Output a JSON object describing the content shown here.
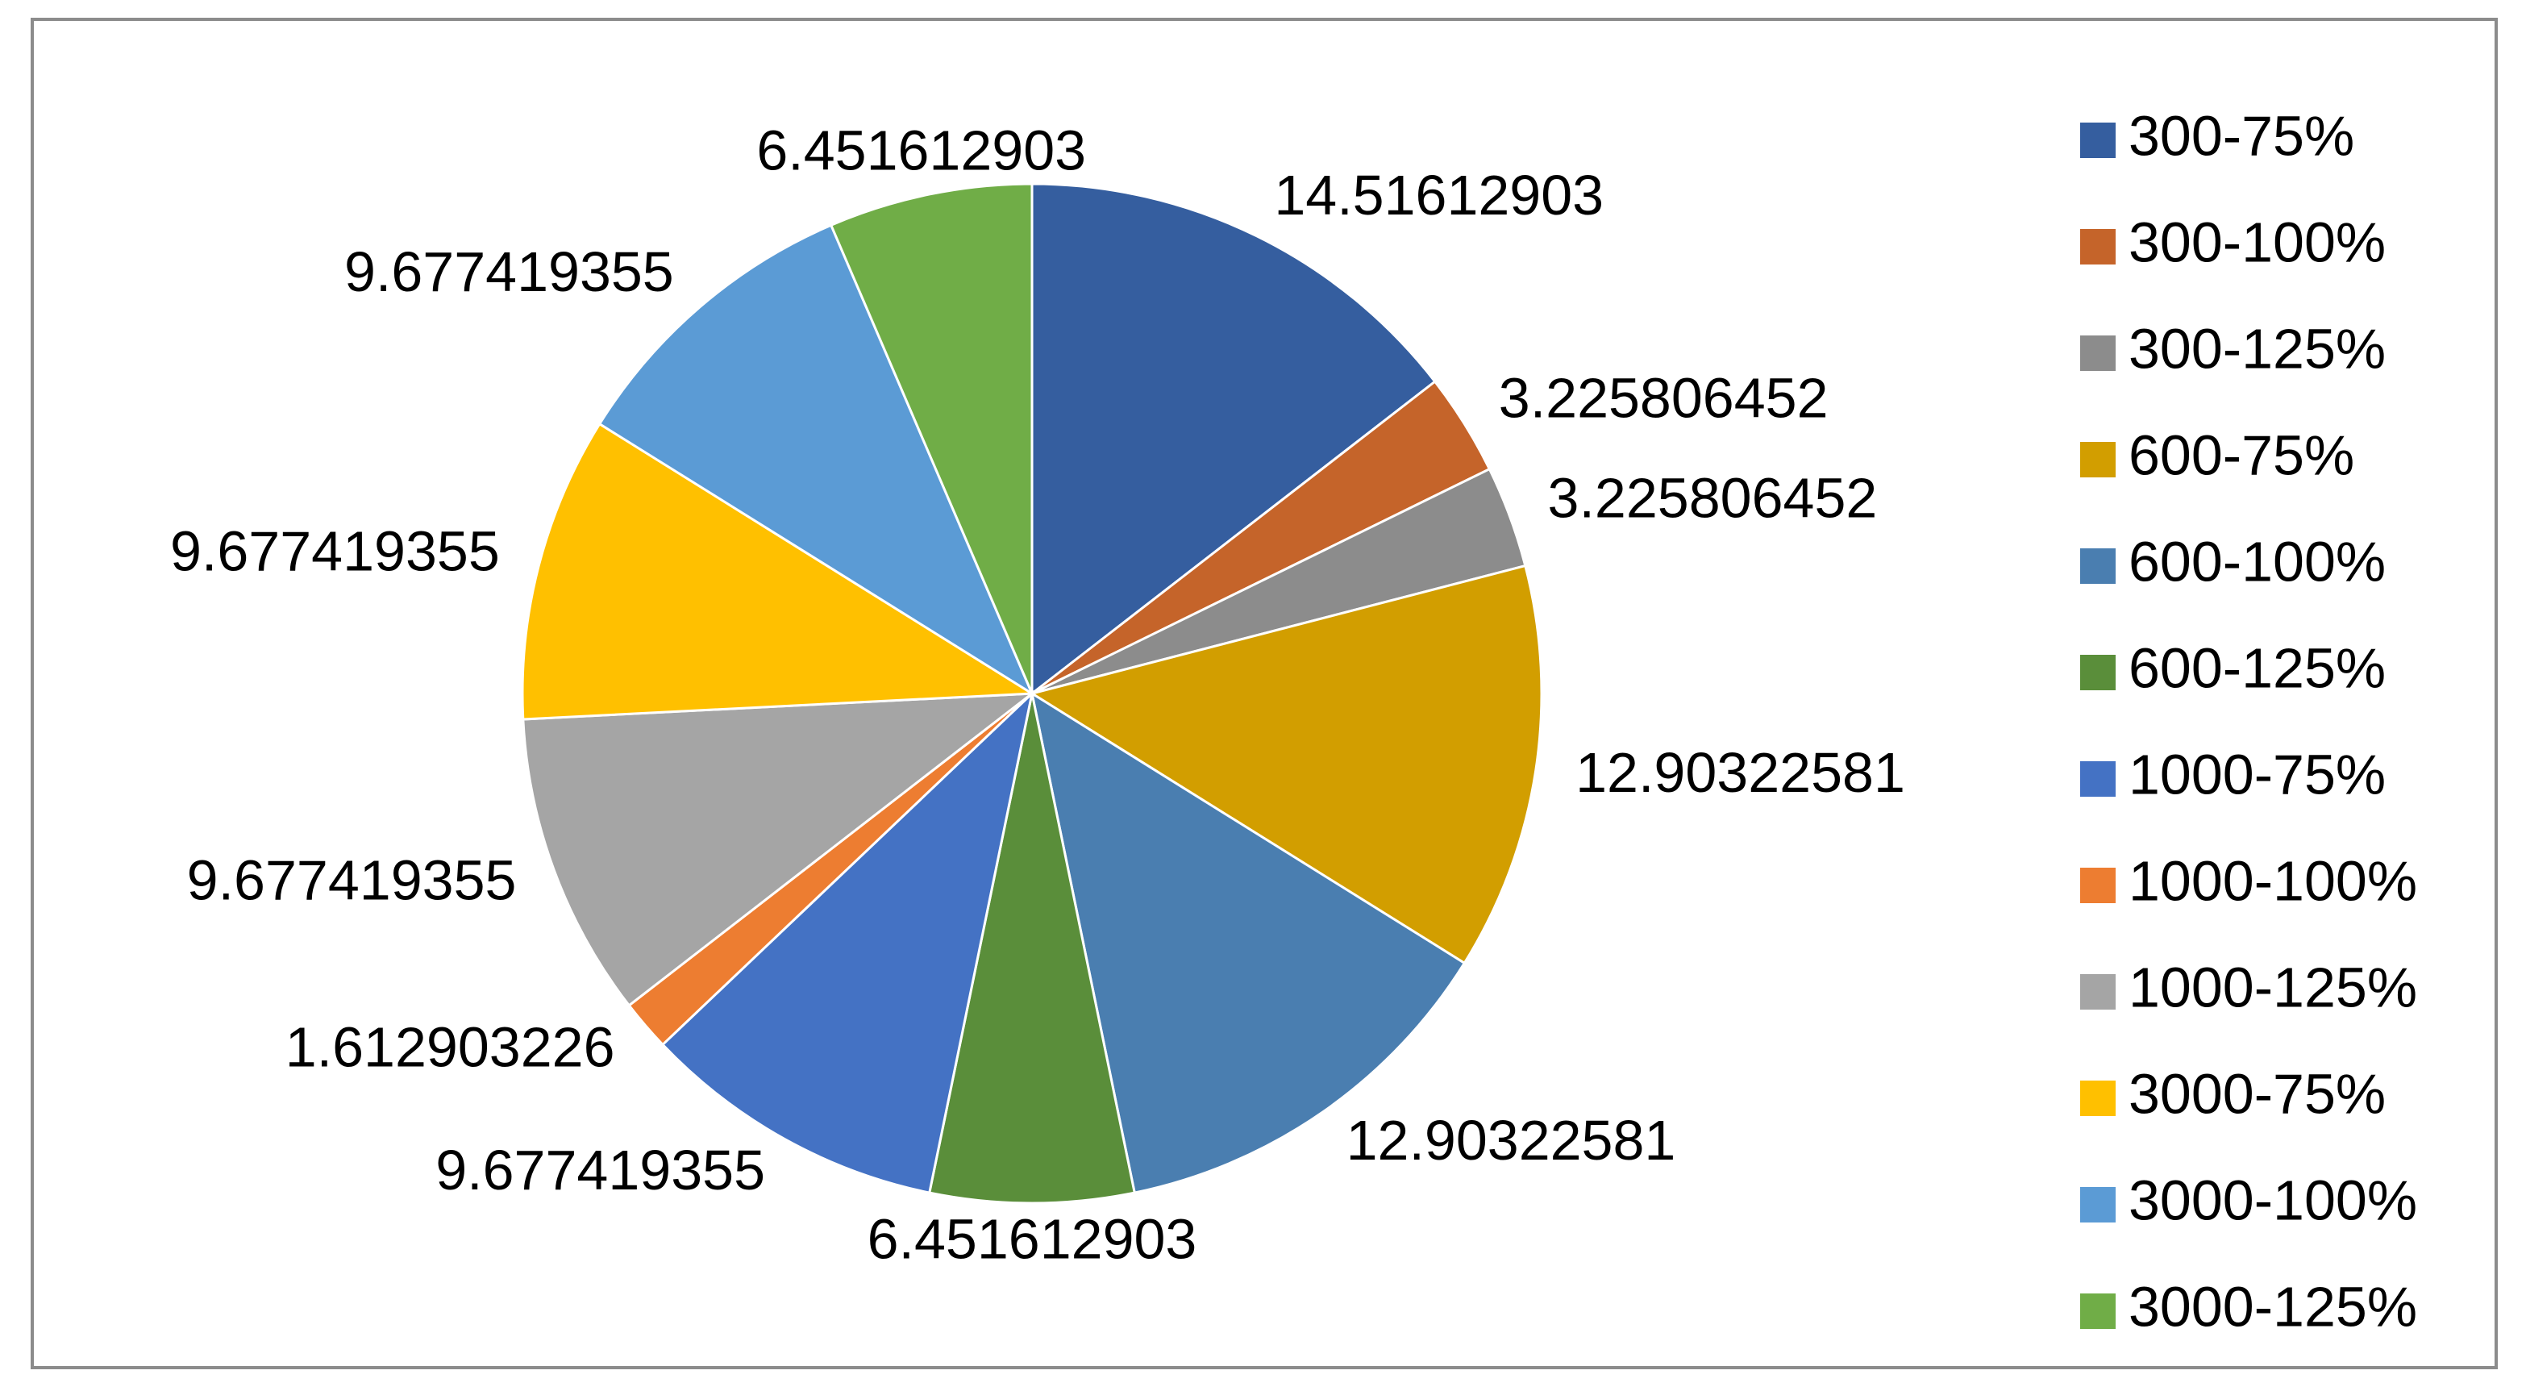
{
  "chart_data": {
    "type": "pie",
    "categories": [
      "300-75%",
      "300-100%",
      "300-125%",
      "600-75%",
      "600-100%",
      "600-125%",
      "1000-75%",
      "1000-100%",
      "1000-125%",
      "3000-75%",
      "3000-100%",
      "3000-125%"
    ],
    "values": [
      14.51612903,
      3.225806452,
      3.225806452,
      12.90322581,
      12.90322581,
      6.451612903,
      9.677419355,
      1.612903226,
      9.677419355,
      9.677419355,
      9.677419355,
      6.451612903
    ],
    "colors": [
      "#355e9f",
      "#c5642a",
      "#8c8c8c",
      "#d29e00",
      "#4a7eb0",
      "#5a8e3a",
      "#4472c4",
      "#ed7d31",
      "#a5a5a5",
      "#ffc000",
      "#5b9bd5",
      "#70ad47"
    ],
    "legend": "right"
  }
}
